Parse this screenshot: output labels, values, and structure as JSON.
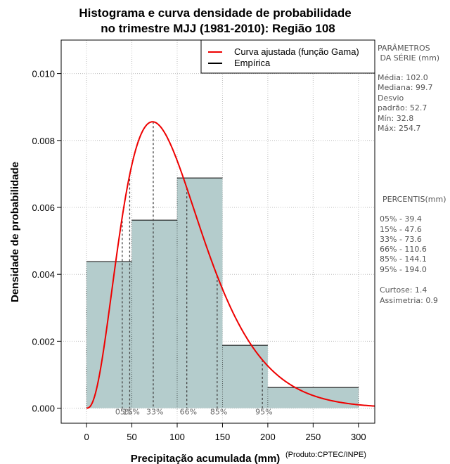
{
  "chart_data": {
    "type": "bar",
    "title": [
      "Histograma e curva densidade de probabilidade",
      "no trimestre MJJ (1981-2010): Região 108"
    ],
    "xlabel": "Precipitação acumulada (mm)",
    "ylabel": "Densidade de probabilidade",
    "credit": "(Produto:CPTEC/INPE)",
    "xlim": [
      -28,
      318
    ],
    "ylim": [
      -0.00045,
      0.011
    ],
    "xticks": [
      0,
      50,
      100,
      150,
      200,
      250,
      300
    ],
    "xtick_labels": [
      "0",
      "50",
      "100",
      "150",
      "200",
      "250",
      "300"
    ],
    "yticks": [
      0.0,
      0.002,
      0.004,
      0.006,
      0.008,
      0.01
    ],
    "ytick_labels": [
      "0.000",
      "0.002",
      "0.004",
      "0.006",
      "0.008",
      "0.010"
    ],
    "grid": true,
    "bar_color": "#b4cccc",
    "bins": [
      {
        "start": 0,
        "end": 50,
        "density": 0.00438
      },
      {
        "start": 50,
        "end": 100,
        "density": 0.00562
      },
      {
        "start": 100,
        "end": 150,
        "density": 0.00688
      },
      {
        "start": 150,
        "end": 200,
        "density": 0.00188
      },
      {
        "start": 200,
        "end": 300,
        "density": 0.00062
      }
    ],
    "gamma_curve": {
      "name": "Curva ajustada (função Gama)",
      "color": "#ee0000",
      "shape": 3.6,
      "scale": 28.0
    },
    "percentile_markers": [
      {
        "label": "05%",
        "value": 39.4
      },
      {
        "label": "15%",
        "value": 47.6
      },
      {
        "label": "33%",
        "value": 73.6
      },
      {
        "label": "66%",
        "value": 110.6
      },
      {
        "label": "85%",
        "value": 144.1
      },
      {
        "label": "95%",
        "value": 194.0
      }
    ],
    "legend": {
      "position": "top-right",
      "entries": [
        {
          "label": "Curva ajustada (função Gama)",
          "color": "#ee0000"
        },
        {
          "label": "Empírica",
          "color": "#000000"
        }
      ]
    }
  },
  "side_panel": {
    "params_title": [
      "PARÂMETROS",
      " DA SÉRIE (mm)"
    ],
    "params": [
      "Média:  102.0",
      "Mediana:  99.7",
      "Desvio",
      "padrão:  52.7",
      "Mín:  32.8",
      "Máx:  254.7"
    ],
    "percentis_title": "PERCENTIS(mm)",
    "percentis": [
      "05% -  39.4",
      "15% -  47.6",
      "33% -  73.6",
      "66% -  110.6",
      "85% -  144.1",
      "95% -  194.0"
    ],
    "stats": [
      "Curtose:  1.4",
      "Assimetria:  0.9"
    ]
  }
}
